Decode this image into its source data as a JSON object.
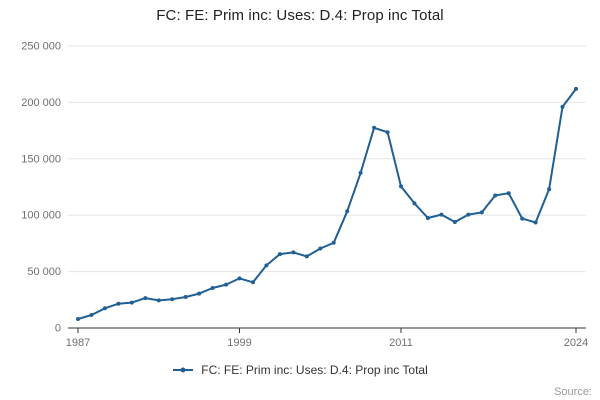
{
  "chart_data": {
    "type": "line",
    "title": "FC: FE: Prim inc: Uses: D.4: Prop inc Total",
    "x": [
      1987,
      1988,
      1989,
      1990,
      1991,
      1992,
      1993,
      1994,
      1995,
      1996,
      1997,
      1998,
      1999,
      2000,
      2001,
      2002,
      2003,
      2004,
      2005,
      2006,
      2007,
      2008,
      2009,
      2010,
      2011,
      2012,
      2013,
      2014,
      2015,
      2016,
      2017,
      2018,
      2019,
      2020,
      2021,
      2022,
      2023,
      2024
    ],
    "values": [
      8000,
      11500,
      17500,
      21500,
      22500,
      26500,
      24500,
      25500,
      27500,
      30500,
      35500,
      38500,
      44000,
      40500,
      55500,
      65500,
      67000,
      63500,
      70500,
      75500,
      103500,
      137500,
      177500,
      173500,
      125500,
      110500,
      97500,
      100500,
      94000,
      100500,
      102500,
      117500,
      119500,
      97000,
      93500,
      123000,
      196000,
      212000
    ],
    "xticks": [
      1987,
      1999,
      2011,
      2024
    ],
    "yticks": [
      {
        "value": 0,
        "label": "0"
      },
      {
        "value": 50000,
        "label": "50 000"
      },
      {
        "value": 100000,
        "label": "100 000"
      },
      {
        "value": 150000,
        "label": "150 000"
      },
      {
        "value": 200000,
        "label": "200 000"
      },
      {
        "value": 250000,
        "label": "250 000"
      }
    ],
    "ylim": [
      0,
      250000
    ],
    "xlabel": "",
    "ylabel": "",
    "grid": "horizontal only",
    "legend": {
      "position": "bottom",
      "label": "FC: FE: Prim inc: Uses: D.4: Prop inc Total"
    },
    "source_label": "Source:",
    "colors": {
      "line": "#206095",
      "grid": "#e6e6e6",
      "axis": "#333333",
      "axis_text": "#707070"
    }
  }
}
